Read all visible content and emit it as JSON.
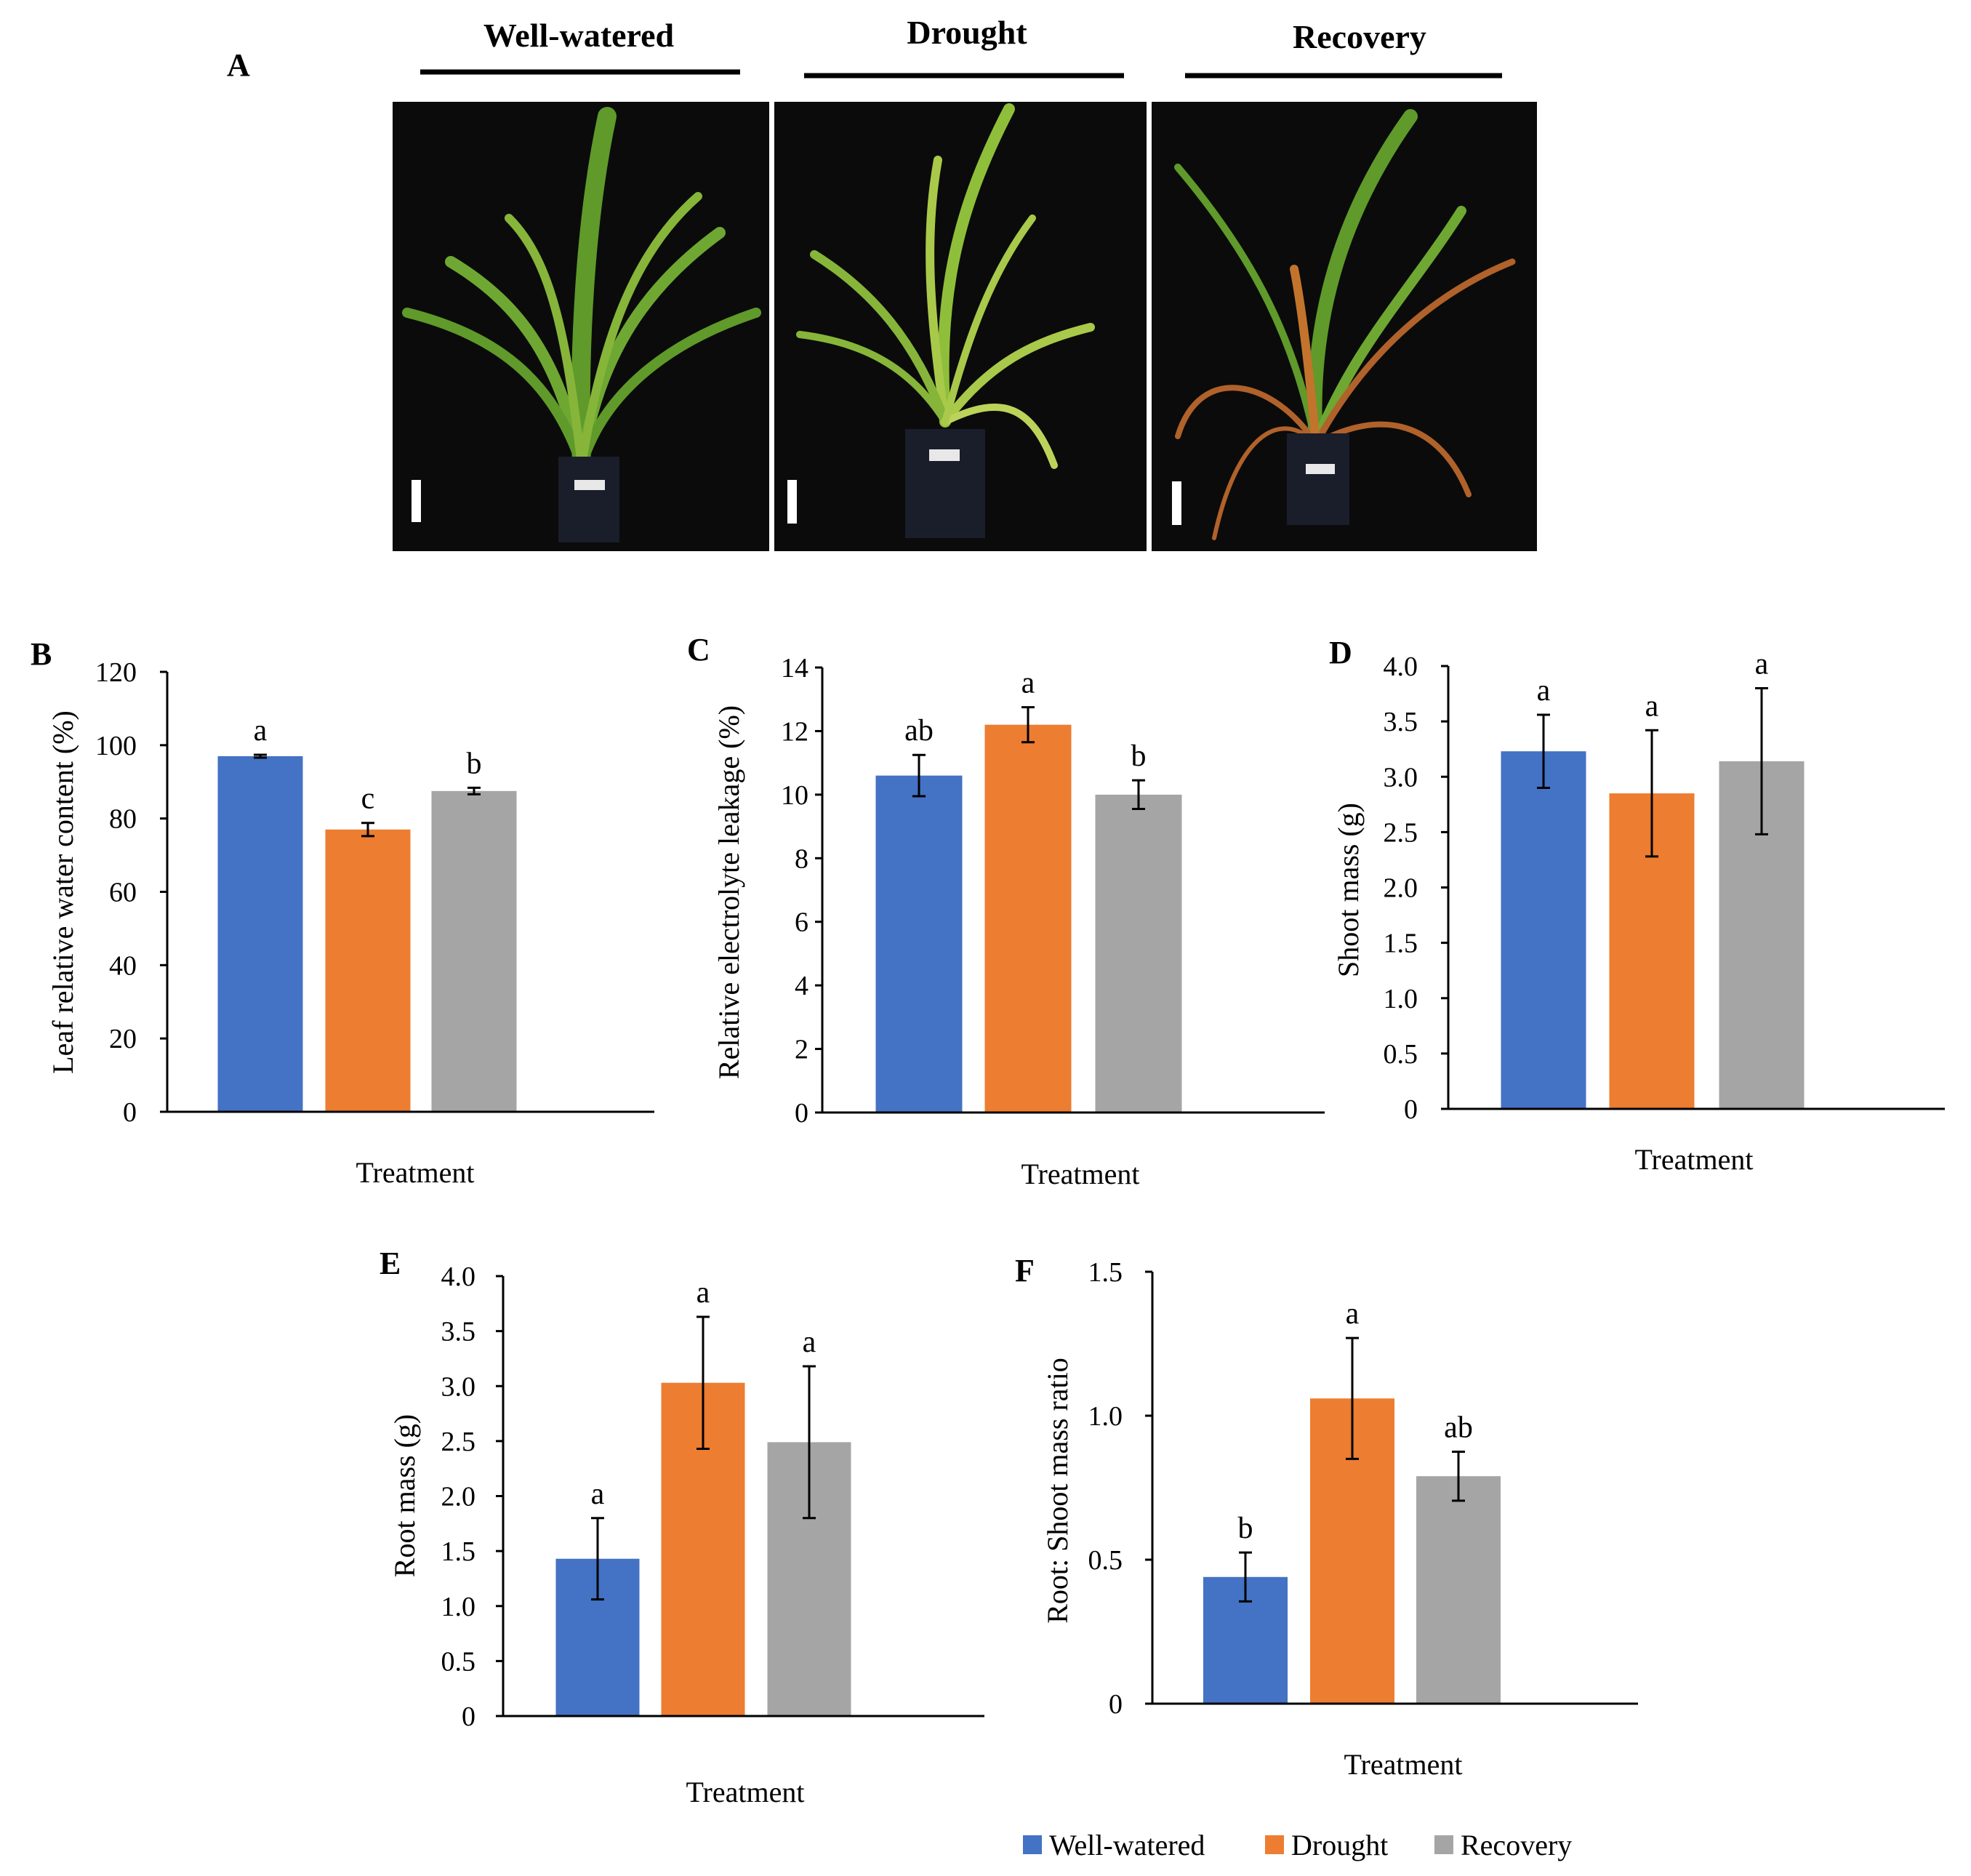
{
  "colors": {
    "well_watered": "#4472C4",
    "drought": "#ED7D31",
    "recovery": "#A5A5A5",
    "axis": "#000000",
    "photo_bg": "#0b0b0b",
    "leaf": "#5f9a2a",
    "leaf_light": "#a9c94a",
    "leaf_dry": "#b0622a"
  },
  "panel_a": {
    "letter": "A",
    "headings": [
      "Well-watered",
      "Drought",
      "Recovery"
    ],
    "photo_descriptions": [
      "well-watered plant photo",
      "drought plant photo",
      "recovery plant photo"
    ]
  },
  "legend": {
    "items": [
      {
        "label": "Well-watered",
        "color_key": "well_watered"
      },
      {
        "label": "Drought",
        "color_key": "drought"
      },
      {
        "label": "Recovery",
        "color_key": "recovery"
      }
    ]
  },
  "chart_data": [
    {
      "panel": "B",
      "type": "bar",
      "ylabel": "Leaf relative water content (%)",
      "xlabel": "Treatment",
      "categories": [
        "Well-watered",
        "Drought",
        "Recovery"
      ],
      "values": [
        97,
        77,
        87.5
      ],
      "errors": [
        0.4,
        1.8,
        0.9
      ],
      "letters": [
        "a",
        "c",
        "b"
      ],
      "ylim": [
        0,
        120
      ],
      "ticks": [
        0,
        20,
        40,
        60,
        80,
        100,
        120
      ],
      "tick_labels": [
        "0",
        "20",
        "40",
        "60",
        "80",
        "100",
        "120"
      ]
    },
    {
      "panel": "C",
      "type": "bar",
      "ylabel": "Relative electrolyte leakage (%)",
      "xlabel": "Treatment",
      "categories": [
        "Well-watered",
        "Drought",
        "Recovery"
      ],
      "values": [
        10.6,
        12.2,
        10.0
      ],
      "errors": [
        0.65,
        0.55,
        0.45
      ],
      "letters": [
        "ab",
        "a",
        "b"
      ],
      "ylim": [
        0,
        14
      ],
      "ticks": [
        0,
        2,
        4,
        6,
        8,
        10,
        12,
        14
      ],
      "tick_labels": [
        "0",
        "2",
        "4",
        "6",
        "8",
        "10",
        "12",
        "14"
      ]
    },
    {
      "panel": "D",
      "type": "bar",
      "ylabel": "Shoot mass (g)",
      "xlabel": "Treatment",
      "categories": [
        "Well-watered",
        "Drought",
        "Recovery"
      ],
      "values": [
        3.23,
        2.85,
        3.14
      ],
      "errors": [
        0.33,
        0.57,
        0.66
      ],
      "letters": [
        "a",
        "a",
        "a"
      ],
      "ylim": [
        0,
        4
      ],
      "ticks": [
        0,
        0.5,
        1,
        1.5,
        2,
        2.5,
        3,
        3.5,
        4
      ],
      "tick_labels": [
        "0",
        "0.5",
        "1.0",
        "1.5",
        "2.0",
        "2.5",
        "3.0",
        "3.5",
        "4.0"
      ]
    },
    {
      "panel": "E",
      "type": "bar",
      "ylabel": "Root mass (g)",
      "xlabel": "Treatment",
      "categories": [
        "Well-watered",
        "Drought",
        "Recovery"
      ],
      "values": [
        1.43,
        3.03,
        2.49
      ],
      "errors": [
        0.37,
        0.6,
        0.69
      ],
      "letters": [
        "a",
        "a",
        "a"
      ],
      "ylim": [
        0,
        4
      ],
      "ticks": [
        0,
        0.5,
        1,
        1.5,
        2,
        2.5,
        3,
        3.5,
        4
      ],
      "tick_labels": [
        "0",
        "0.5",
        "1.0",
        "1.5",
        "2.0",
        "2.5",
        "3.0",
        "3.5",
        "4.0"
      ]
    },
    {
      "panel": "F",
      "type": "bar",
      "ylabel": "Root: Shoot mass ratio",
      "xlabel": "Treatment",
      "categories": [
        "Well-watered",
        "Drought",
        "Recovery"
      ],
      "values": [
        0.44,
        1.06,
        0.79
      ],
      "errors": [
        0.085,
        0.21,
        0.085
      ],
      "letters": [
        "b",
        "a",
        "ab"
      ],
      "ylim": [
        0,
        1.5
      ],
      "ticks": [
        0,
        0.5,
        1,
        1.5
      ],
      "tick_labels": [
        "0",
        "0.5",
        "1.0",
        "1.5"
      ]
    }
  ]
}
